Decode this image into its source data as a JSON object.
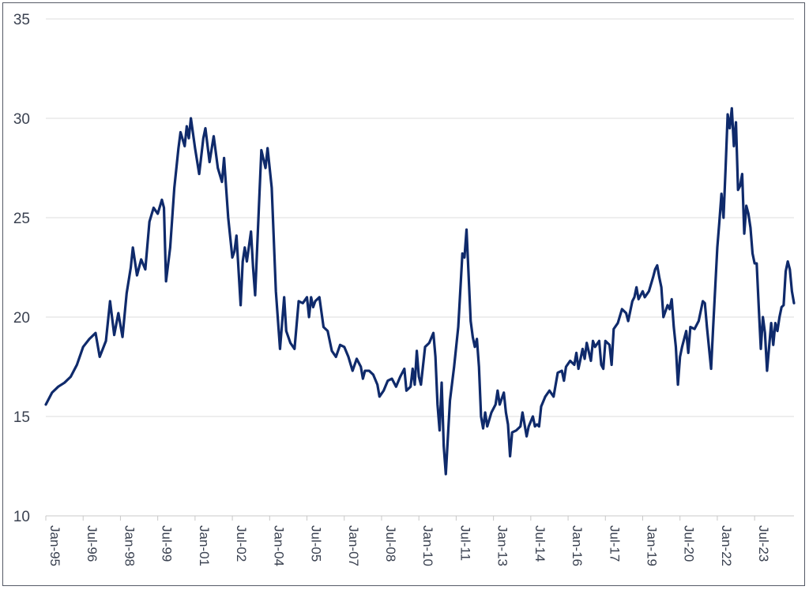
{
  "chart_data": {
    "type": "line",
    "title": "",
    "xlabel": "",
    "ylabel": "",
    "ylim": [
      10,
      35
    ],
    "yticks": [
      10,
      15,
      20,
      25,
      30,
      35
    ],
    "grid": "horizontal",
    "legend": "none",
    "x_tick_labels": [
      "Jan-95",
      "Jul-96",
      "Jan-98",
      "Jul-99",
      "Jan-01",
      "Jul-02",
      "Jan-04",
      "Jul-05",
      "Jan-07",
      "Jul-08",
      "Jan-10",
      "Jul-11",
      "Jan-13",
      "Jul-14",
      "Jan-16",
      "Jul-17",
      "Jan-19",
      "Jul-20",
      "Jan-22",
      "Jul-23"
    ],
    "x_range": [
      "Jan-95",
      "Nov-23"
    ],
    "series": [
      {
        "color": "#0f2a6b",
        "points": [
          [
            "Jan-95",
            15.6
          ],
          [
            "Apr-95",
            16.2
          ],
          [
            "Jul-95",
            16.5
          ],
          [
            "Oct-95",
            16.7
          ],
          [
            "Jan-96",
            17.0
          ],
          [
            "Apr-96",
            17.6
          ],
          [
            "Jul-96",
            18.5
          ],
          [
            "Oct-96",
            18.9
          ],
          [
            "Jan-97",
            19.2
          ],
          [
            "Mar-97",
            18.0
          ],
          [
            "Jun-97",
            18.8
          ],
          [
            "Aug-97",
            20.8
          ],
          [
            "Oct-97",
            19.1
          ],
          [
            "Dec-97",
            20.2
          ],
          [
            "Feb-98",
            19.0
          ],
          [
            "Apr-98",
            21.2
          ],
          [
            "Jun-98",
            22.5
          ],
          [
            "Jul-98",
            23.5
          ],
          [
            "Sep-98",
            22.1
          ],
          [
            "Nov-98",
            22.9
          ],
          [
            "Jan-99",
            22.4
          ],
          [
            "Mar-99",
            24.8
          ],
          [
            "May-99",
            25.5
          ],
          [
            "Jul-99",
            25.2
          ],
          [
            "Sep-99",
            25.9
          ],
          [
            "Oct-99",
            25.5
          ],
          [
            "Nov-99",
            21.8
          ],
          [
            "Jan-00",
            23.5
          ],
          [
            "Mar-00",
            26.5
          ],
          [
            "May-00",
            28.5
          ],
          [
            "Jun-00",
            29.3
          ],
          [
            "Aug-00",
            28.6
          ],
          [
            "Sep-00",
            29.6
          ],
          [
            "Oct-00",
            29.0
          ],
          [
            "Nov-00",
            30.0
          ],
          [
            "Jan-01",
            28.5
          ],
          [
            "Mar-01",
            27.2
          ],
          [
            "May-01",
            29.0
          ],
          [
            "Jun-01",
            29.5
          ],
          [
            "Aug-01",
            27.8
          ],
          [
            "Oct-01",
            29.1
          ],
          [
            "Dec-01",
            27.5
          ],
          [
            "Feb-02",
            26.8
          ],
          [
            "Mar-02",
            28.0
          ],
          [
            "May-02",
            25.0
          ],
          [
            "Jul-02",
            23.0
          ],
          [
            "Aug-02",
            23.3
          ],
          [
            "Sep-02",
            24.1
          ],
          [
            "Nov-02",
            20.6
          ],
          [
            "Dec-02",
            22.8
          ],
          [
            "Jan-03",
            23.5
          ],
          [
            "Feb-03",
            22.8
          ],
          [
            "Apr-03",
            24.3
          ],
          [
            "May-03",
            22.5
          ],
          [
            "Jun-03",
            21.1
          ],
          [
            "Aug-03",
            26.0
          ],
          [
            "Sep-03",
            28.4
          ],
          [
            "Nov-03",
            27.5
          ],
          [
            "Dec-03",
            28.5
          ],
          [
            "Feb-04",
            26.5
          ],
          [
            "Apr-04",
            21.3
          ],
          [
            "Jun-04",
            18.4
          ],
          [
            "Aug-04",
            21.0
          ],
          [
            "Sep-04",
            19.3
          ],
          [
            "Nov-04",
            18.7
          ],
          [
            "Jan-05",
            18.4
          ],
          [
            "Mar-05",
            20.8
          ],
          [
            "May-05",
            20.7
          ],
          [
            "Jul-05",
            21.0
          ],
          [
            "Aug-05",
            20.0
          ],
          [
            "Sep-05",
            21.0
          ],
          [
            "Oct-05",
            20.5
          ],
          [
            "Nov-05",
            20.8
          ],
          [
            "Jan-06",
            21.0
          ],
          [
            "Mar-06",
            19.5
          ],
          [
            "May-06",
            19.3
          ],
          [
            "Jul-06",
            18.3
          ],
          [
            "Sep-06",
            18.0
          ],
          [
            "Nov-06",
            18.6
          ],
          [
            "Jan-07",
            18.5
          ],
          [
            "Mar-07",
            18.0
          ],
          [
            "May-07",
            17.3
          ],
          [
            "Jul-07",
            17.9
          ],
          [
            "Sep-07",
            17.5
          ],
          [
            "Oct-07",
            16.9
          ],
          [
            "Nov-07",
            17.3
          ],
          [
            "Jan-08",
            17.3
          ],
          [
            "Mar-08",
            17.1
          ],
          [
            "May-08",
            16.6
          ],
          [
            "Jun-08",
            16.0
          ],
          [
            "Aug-08",
            16.3
          ],
          [
            "Oct-08",
            16.8
          ],
          [
            "Dec-08",
            16.9
          ],
          [
            "Feb-09",
            16.5
          ],
          [
            "Apr-09",
            17.0
          ],
          [
            "Jun-09",
            17.4
          ],
          [
            "Jul-09",
            16.3
          ],
          [
            "Sep-09",
            16.5
          ],
          [
            "Oct-09",
            17.4
          ],
          [
            "Nov-09",
            16.6
          ],
          [
            "Dec-09",
            18.3
          ],
          [
            "Jan-10",
            17.0
          ],
          [
            "Feb-10",
            16.6
          ],
          [
            "Apr-10",
            18.5
          ],
          [
            "Jun-10",
            18.7
          ],
          [
            "Aug-10",
            19.2
          ],
          [
            "Sep-10",
            18.0
          ],
          [
            "Oct-10",
            15.6
          ],
          [
            "Nov-10",
            14.3
          ],
          [
            "Dec-10",
            16.7
          ],
          [
            "Jan-11",
            13.5
          ],
          [
            "Feb-11",
            12.1
          ],
          [
            "Apr-11",
            15.8
          ],
          [
            "Jun-11",
            17.5
          ],
          [
            "Aug-11",
            19.5
          ],
          [
            "Oct-11",
            23.2
          ],
          [
            "Nov-11",
            23.0
          ],
          [
            "Dec-11",
            24.4
          ],
          [
            "Feb-12",
            19.8
          ],
          [
            "Mar-12",
            19.0
          ],
          [
            "Apr-12",
            18.5
          ],
          [
            "May-12",
            18.9
          ],
          [
            "Jun-12",
            17.5
          ],
          [
            "Jul-12",
            15.0
          ],
          [
            "Aug-12",
            14.4
          ],
          [
            "Sep-12",
            15.2
          ],
          [
            "Oct-12",
            14.5
          ],
          [
            "Dec-12",
            15.2
          ],
          [
            "Feb-13",
            15.6
          ],
          [
            "Mar-13",
            16.3
          ],
          [
            "Apr-13",
            15.6
          ],
          [
            "Jun-13",
            16.2
          ],
          [
            "Jul-13",
            15.2
          ],
          [
            "Aug-13",
            14.6
          ],
          [
            "Sep-13",
            13.0
          ],
          [
            "Oct-13",
            14.2
          ],
          [
            "Dec-13",
            14.3
          ],
          [
            "Feb-14",
            14.5
          ],
          [
            "Mar-14",
            15.2
          ],
          [
            "May-14",
            14.0
          ],
          [
            "Jun-14",
            14.5
          ],
          [
            "Aug-14",
            15.0
          ],
          [
            "Sep-14",
            14.5
          ],
          [
            "Oct-14",
            14.6
          ],
          [
            "Nov-14",
            14.5
          ],
          [
            "Dec-14",
            15.5
          ],
          [
            "Feb-15",
            16.0
          ],
          [
            "Apr-15",
            16.3
          ],
          [
            "Jun-15",
            16.0
          ],
          [
            "Aug-15",
            17.2
          ],
          [
            "Oct-15",
            17.3
          ],
          [
            "Nov-15",
            16.8
          ],
          [
            "Dec-15",
            17.5
          ],
          [
            "Feb-16",
            17.8
          ],
          [
            "Apr-16",
            17.6
          ],
          [
            "May-16",
            18.2
          ],
          [
            "Jun-16",
            17.4
          ],
          [
            "Aug-16",
            18.4
          ],
          [
            "Sep-16",
            17.9
          ],
          [
            "Oct-16",
            18.7
          ],
          [
            "Dec-16",
            17.8
          ],
          [
            "Jan-17",
            18.8
          ],
          [
            "Feb-17",
            18.5
          ],
          [
            "Apr-17",
            18.8
          ],
          [
            "May-17",
            17.6
          ],
          [
            "Jun-17",
            17.4
          ],
          [
            "Jul-17",
            18.8
          ],
          [
            "Aug-17",
            18.7
          ],
          [
            "Sep-17",
            18.6
          ],
          [
            "Oct-17",
            17.6
          ],
          [
            "Nov-17",
            19.4
          ],
          [
            "Jan-18",
            19.7
          ],
          [
            "Mar-18",
            20.4
          ],
          [
            "May-18",
            20.2
          ],
          [
            "Jun-18",
            19.8
          ],
          [
            "Aug-18",
            20.8
          ],
          [
            "Sep-18",
            21.0
          ],
          [
            "Oct-18",
            21.5
          ],
          [
            "Nov-18",
            20.9
          ],
          [
            "Jan-19",
            21.3
          ],
          [
            "Feb-19",
            21.0
          ],
          [
            "Apr-19",
            21.3
          ],
          [
            "Jun-19",
            22.0
          ],
          [
            "Jul-19",
            22.4
          ],
          [
            "Aug-19",
            22.6
          ],
          [
            "Sep-19",
            22.0
          ],
          [
            "Oct-19",
            21.5
          ],
          [
            "Nov-19",
            20.0
          ],
          [
            "Jan-20",
            20.6
          ],
          [
            "Feb-20",
            20.4
          ],
          [
            "Mar-20",
            20.9
          ],
          [
            "Apr-20",
            19.5
          ],
          [
            "May-20",
            18.5
          ],
          [
            "Jun-20",
            16.6
          ],
          [
            "Jul-20",
            18.0
          ],
          [
            "Aug-20",
            18.5
          ],
          [
            "Oct-20",
            19.3
          ],
          [
            "Nov-20",
            18.2
          ],
          [
            "Dec-20",
            19.5
          ],
          [
            "Feb-21",
            19.4
          ],
          [
            "Apr-21",
            19.8
          ],
          [
            "Jun-21",
            20.8
          ],
          [
            "Jul-21",
            20.7
          ],
          [
            "Aug-21",
            19.5
          ],
          [
            "Oct-21",
            17.4
          ],
          [
            "Nov-21",
            19.5
          ],
          [
            "Dec-21",
            21.5
          ],
          [
            "Jan-22",
            23.5
          ],
          [
            "Feb-22",
            24.8
          ],
          [
            "Mar-22",
            26.2
          ],
          [
            "Apr-22",
            25.0
          ],
          [
            "May-22",
            27.5
          ],
          [
            "Jun-22",
            30.2
          ],
          [
            "Jul-22",
            29.5
          ],
          [
            "Aug-22",
            30.5
          ],
          [
            "Sep-22",
            28.6
          ],
          [
            "Oct-22",
            29.8
          ],
          [
            "Nov-22",
            26.4
          ],
          [
            "Dec-22",
            26.6
          ],
          [
            "Jan-23",
            27.2
          ],
          [
            "Feb-23",
            24.2
          ],
          [
            "Mar-23",
            25.6
          ],
          [
            "Apr-23",
            25.2
          ],
          [
            "May-23",
            24.5
          ],
          [
            "Jun-23",
            23.2
          ],
          [
            "Jul-23",
            22.7
          ],
          [
            "Aug-23",
            22.7
          ],
          [
            "Sep-23",
            20.5
          ],
          [
            "Oct-23",
            18.4
          ],
          [
            "Nov-23",
            20.0
          ],
          [
            "Dec-23",
            19.2
          ],
          [
            "Jan-24",
            17.3
          ],
          [
            "Feb-24",
            18.5
          ],
          [
            "Mar-24",
            19.7
          ],
          [
            "Apr-24",
            18.6
          ],
          [
            "May-24",
            19.7
          ],
          [
            "Jun-24",
            19.3
          ],
          [
            "Jul-24",
            20.0
          ],
          [
            "Aug-24",
            20.5
          ],
          [
            "Sep-24",
            20.6
          ],
          [
            "Oct-24",
            22.3
          ],
          [
            "Nov-24",
            22.8
          ],
          [
            "Dec-24",
            22.4
          ],
          [
            "Jan-25",
            21.3
          ],
          [
            "Feb-25",
            20.7
          ]
        ]
      }
    ]
  }
}
